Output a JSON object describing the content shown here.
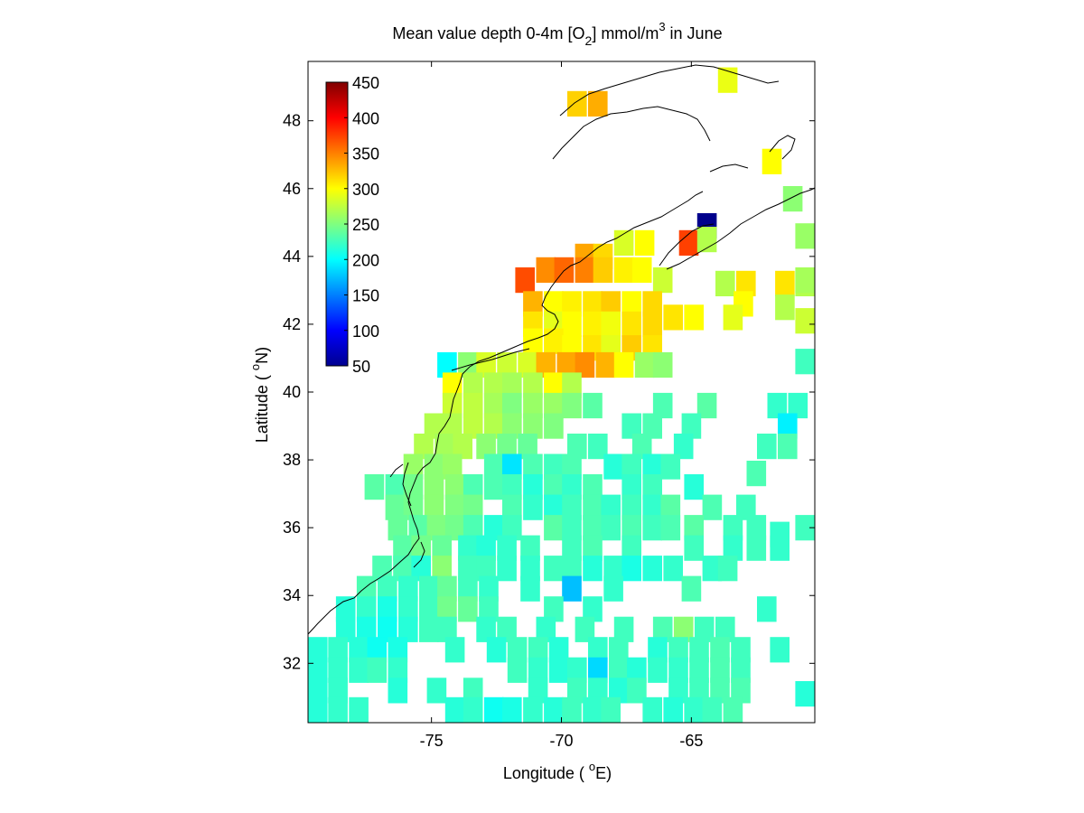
{
  "figure": {
    "title_main": "Mean value depth 0-4m [O",
    "title_sub": "2",
    "title_mid": "] mmol/m",
    "title_sup": "3",
    "title_end": " in June",
    "xlabel_pre": "Longitude ( ",
    "xlabel_deg": "o",
    "xlabel_post": "E)",
    "ylabel_pre": "Latitude ( ",
    "ylabel_deg": "o",
    "ylabel_post": "N)"
  },
  "chart_data": {
    "type": "heatmap",
    "xlim": [
      -79.75,
      -60.25
    ],
    "ylim": [
      30.25,
      49.75
    ],
    "cell_size_deg": 0.75,
    "x_ticks": [
      -75,
      -70,
      -65
    ],
    "x_tick_labels": [
      "-75",
      "-70",
      "-65"
    ],
    "y_ticks": [
      32,
      34,
      36,
      38,
      40,
      42,
      44,
      46,
      48
    ],
    "y_tick_labels": [
      "32",
      "34",
      "36",
      "38",
      "40",
      "42",
      "44",
      "46",
      "48"
    ],
    "colorbar": {
      "min": 50,
      "max": 450,
      "colormap": "jet",
      "ticks": [
        50,
        100,
        150,
        200,
        250,
        300,
        350,
        400,
        450
      ],
      "tick_labels": [
        "50",
        "100",
        "150",
        "200",
        "250",
        "300",
        "350",
        "400",
        "450"
      ],
      "placement": "top-left inside axes"
    },
    "cells": [
      [
        -69.4,
        48.5,
        318
      ],
      [
        -68.6,
        48.5,
        332
      ],
      [
        -63.6,
        49.2,
        292
      ],
      [
        -61.9,
        46.8,
        300
      ],
      [
        -61.1,
        45.7,
        255
      ],
      [
        -64.4,
        44.9,
        55
      ],
      [
        -65.1,
        44.4,
        375
      ],
      [
        -64.4,
        44.5,
        270
      ],
      [
        -67.6,
        44.4,
        285
      ],
      [
        -66.8,
        44.4,
        300
      ],
      [
        -69.1,
        44.0,
        335
      ],
      [
        -68.4,
        44.0,
        315
      ],
      [
        -71.4,
        43.3,
        370
      ],
      [
        -70.6,
        43.6,
        345
      ],
      [
        -69.9,
        43.6,
        360
      ],
      [
        -69.1,
        43.6,
        350
      ],
      [
        -68.4,
        43.6,
        320
      ],
      [
        -67.6,
        43.6,
        305
      ],
      [
        -66.9,
        43.6,
        300
      ],
      [
        -66.1,
        43.3,
        280
      ],
      [
        -63.7,
        43.2,
        270
      ],
      [
        -62.9,
        43.2,
        310
      ],
      [
        -61.4,
        43.2,
        310
      ],
      [
        -60.6,
        43.2,
        270
      ],
      [
        -63.0,
        42.6,
        300
      ],
      [
        -61.4,
        42.5,
        270
      ],
      [
        -71.1,
        42.6,
        330
      ],
      [
        -70.3,
        42.6,
        300
      ],
      [
        -69.6,
        42.6,
        305
      ],
      [
        -68.8,
        42.6,
        310
      ],
      [
        -68.1,
        42.6,
        320
      ],
      [
        -67.3,
        42.6,
        300
      ],
      [
        -66.5,
        42.6,
        315
      ],
      [
        -71.1,
        42.0,
        310
      ],
      [
        -70.3,
        42.0,
        290
      ],
      [
        -69.6,
        42.0,
        300
      ],
      [
        -68.8,
        42.0,
        305
      ],
      [
        -68.1,
        42.0,
        295
      ],
      [
        -67.3,
        42.0,
        310
      ],
      [
        -66.5,
        42.0,
        315
      ],
      [
        -65.7,
        42.2,
        310
      ],
      [
        -64.9,
        42.2,
        300
      ],
      [
        -63.4,
        42.2,
        290
      ],
      [
        -71.1,
        41.5,
        300
      ],
      [
        -70.3,
        41.5,
        305
      ],
      [
        -69.6,
        41.3,
        300
      ],
      [
        -68.8,
        41.3,
        310
      ],
      [
        -68.1,
        41.3,
        290
      ],
      [
        -67.3,
        41.3,
        320
      ],
      [
        -66.5,
        41.3,
        310
      ],
      [
        -74.4,
        40.8,
        200
      ],
      [
        -73.6,
        40.8,
        255
      ],
      [
        -72.9,
        40.8,
        285
      ],
      [
        -72.1,
        40.8,
        280
      ],
      [
        -71.3,
        40.8,
        285
      ],
      [
        -70.6,
        40.8,
        330
      ],
      [
        -69.8,
        40.8,
        335
      ],
      [
        -69.1,
        40.8,
        345
      ],
      [
        -68.3,
        40.8,
        330
      ],
      [
        -67.6,
        40.8,
        300
      ],
      [
        -66.8,
        40.8,
        260
      ],
      [
        -66.1,
        40.8,
        255
      ],
      [
        -74.2,
        40.2,
        300
      ],
      [
        -73.4,
        40.2,
        270
      ],
      [
        -72.6,
        40.2,
        270
      ],
      [
        -71.9,
        40.2,
        265
      ],
      [
        -71.1,
        40.2,
        270
      ],
      [
        -70.3,
        40.2,
        300
      ],
      [
        -69.6,
        40.2,
        270
      ],
      [
        -74.2,
        39.6,
        280
      ],
      [
        -73.4,
        39.6,
        275
      ],
      [
        -72.6,
        39.6,
        265
      ],
      [
        -71.9,
        39.6,
        250
      ],
      [
        -71.1,
        39.6,
        260
      ],
      [
        -70.3,
        39.6,
        260
      ],
      [
        -69.6,
        39.6,
        250
      ],
      [
        -68.8,
        39.6,
        235
      ],
      [
        -66.1,
        39.6,
        230
      ],
      [
        -64.4,
        39.6,
        235
      ],
      [
        -61.7,
        39.6,
        220
      ],
      [
        -60.9,
        39.6,
        220
      ],
      [
        -74.9,
        39.0,
        270
      ],
      [
        -74.2,
        39.0,
        270
      ],
      [
        -73.4,
        39.0,
        275
      ],
      [
        -72.6,
        39.0,
        270
      ],
      [
        -71.9,
        39.0,
        255
      ],
      [
        -71.1,
        39.0,
        255
      ],
      [
        -70.3,
        39.0,
        250
      ],
      [
        -67.3,
        39.0,
        225
      ],
      [
        -66.5,
        39.0,
        230
      ],
      [
        -65.0,
        39.0,
        225
      ],
      [
        -61.3,
        39.0,
        195
      ],
      [
        -75.3,
        38.4,
        270
      ],
      [
        -74.5,
        38.4,
        265
      ],
      [
        -73.8,
        38.4,
        270
      ],
      [
        -72.9,
        38.4,
        255
      ],
      [
        -72.1,
        38.4,
        245
      ],
      [
        -71.3,
        38.4,
        240
      ],
      [
        -69.4,
        38.4,
        230
      ],
      [
        -68.6,
        38.4,
        225
      ],
      [
        -66.9,
        38.4,
        230
      ],
      [
        -65.3,
        38.4,
        220
      ],
      [
        -62.1,
        38.4,
        225
      ],
      [
        -61.3,
        38.4,
        230
      ],
      [
        -75.7,
        37.8,
        260
      ],
      [
        -74.9,
        37.8,
        255
      ],
      [
        -74.2,
        37.8,
        260
      ],
      [
        -72.6,
        37.8,
        230
      ],
      [
        -71.9,
        37.8,
        190
      ],
      [
        -71.1,
        37.8,
        230
      ],
      [
        -70.3,
        37.8,
        225
      ],
      [
        -69.6,
        37.8,
        230
      ],
      [
        -68.0,
        37.8,
        215
      ],
      [
        -67.3,
        37.8,
        225
      ],
      [
        -66.5,
        37.8,
        215
      ],
      [
        -65.8,
        37.8,
        225
      ],
      [
        -62.5,
        37.6,
        230
      ],
      [
        -77.2,
        37.2,
        235
      ],
      [
        -76.4,
        37.2,
        230
      ],
      [
        -75.7,
        37.2,
        245
      ],
      [
        -74.9,
        37.2,
        255
      ],
      [
        -74.1,
        37.2,
        255
      ],
      [
        -73.4,
        37.2,
        230
      ],
      [
        -72.6,
        37.2,
        230
      ],
      [
        -71.9,
        37.2,
        225
      ],
      [
        -71.1,
        37.2,
        215
      ],
      [
        -70.3,
        37.2,
        230
      ],
      [
        -69.6,
        37.2,
        220
      ],
      [
        -68.8,
        37.2,
        230
      ],
      [
        -67.3,
        37.2,
        220
      ],
      [
        -66.5,
        37.2,
        225
      ],
      [
        -64.9,
        37.2,
        215
      ],
      [
        -76.4,
        36.6,
        240
      ],
      [
        -75.7,
        36.6,
        245
      ],
      [
        -74.9,
        36.6,
        255
      ],
      [
        -74.1,
        36.6,
        250
      ],
      [
        -73.4,
        36.6,
        245
      ],
      [
        -71.9,
        36.6,
        230
      ],
      [
        -71.1,
        36.6,
        220
      ],
      [
        -70.3,
        36.6,
        215
      ],
      [
        -69.6,
        36.6,
        225
      ],
      [
        -68.8,
        36.6,
        230
      ],
      [
        -68.1,
        36.6,
        220
      ],
      [
        -67.3,
        36.6,
        225
      ],
      [
        -66.5,
        36.6,
        220
      ],
      [
        -65.8,
        36.6,
        235
      ],
      [
        -64.2,
        36.6,
        230
      ],
      [
        -62.9,
        36.6,
        225
      ],
      [
        -76.3,
        36.0,
        240
      ],
      [
        -75.5,
        36.0,
        235
      ],
      [
        -74.8,
        36.0,
        250
      ],
      [
        -74.1,
        36.0,
        245
      ],
      [
        -73.4,
        36.0,
        230
      ],
      [
        -72.6,
        36.0,
        215
      ],
      [
        -71.9,
        36.0,
        225
      ],
      [
        -70.3,
        36.0,
        235
      ],
      [
        -69.6,
        36.0,
        225
      ],
      [
        -68.8,
        36.0,
        230
      ],
      [
        -68.1,
        36.0,
        225
      ],
      [
        -67.3,
        36.0,
        230
      ],
      [
        -66.5,
        36.0,
        225
      ],
      [
        -65.8,
        36.0,
        230
      ],
      [
        -64.9,
        36.0,
        235
      ],
      [
        -63.4,
        36.0,
        225
      ],
      [
        -62.5,
        36.0,
        225
      ],
      [
        -61.6,
        35.8,
        220
      ],
      [
        -76.1,
        35.4,
        235
      ],
      [
        -75.4,
        35.4,
        245
      ],
      [
        -74.6,
        35.4,
        240
      ],
      [
        -73.6,
        35.4,
        220
      ],
      [
        -72.9,
        35.4,
        215
      ],
      [
        -72.1,
        35.4,
        220
      ],
      [
        -71.2,
        35.4,
        225
      ],
      [
        -69.6,
        35.4,
        225
      ],
      [
        -68.8,
        35.4,
        230
      ],
      [
        -67.3,
        35.4,
        225
      ],
      [
        -64.9,
        35.4,
        225
      ],
      [
        -63.4,
        35.4,
        220
      ],
      [
        -62.5,
        35.4,
        225
      ],
      [
        -61.6,
        35.4,
        220
      ],
      [
        -76.9,
        34.8,
        230
      ],
      [
        -76.1,
        34.8,
        230
      ],
      [
        -75.4,
        34.8,
        215
      ],
      [
        -74.6,
        34.8,
        255
      ],
      [
        -73.6,
        34.8,
        225
      ],
      [
        -72.9,
        34.8,
        225
      ],
      [
        -72.1,
        34.8,
        220
      ],
      [
        -71.2,
        34.8,
        220
      ],
      [
        -70.3,
        34.8,
        225
      ],
      [
        -69.6,
        34.8,
        225
      ],
      [
        -68.8,
        34.8,
        215
      ],
      [
        -68.0,
        34.8,
        220
      ],
      [
        -67.3,
        34.8,
        210
      ],
      [
        -66.5,
        34.8,
        215
      ],
      [
        -65.7,
        34.8,
        220
      ],
      [
        -64.2,
        34.8,
        220
      ],
      [
        -63.6,
        34.8,
        225
      ],
      [
        -77.5,
        34.2,
        230
      ],
      [
        -76.7,
        34.2,
        225
      ],
      [
        -75.9,
        34.2,
        220
      ],
      [
        -75.1,
        34.2,
        225
      ],
      [
        -74.4,
        34.2,
        240
      ],
      [
        -73.6,
        34.2,
        225
      ],
      [
        -72.8,
        34.2,
        220
      ],
      [
        -71.2,
        34.2,
        220
      ],
      [
        -69.6,
        34.2,
        175
      ],
      [
        -68.0,
        34.2,
        220
      ],
      [
        -65.0,
        34.2,
        230
      ],
      [
        -78.3,
        33.6,
        215
      ],
      [
        -77.5,
        33.6,
        220
      ],
      [
        -76.7,
        33.6,
        210
      ],
      [
        -75.9,
        33.6,
        220
      ],
      [
        -75.1,
        33.6,
        225
      ],
      [
        -74.4,
        33.6,
        245
      ],
      [
        -73.6,
        33.6,
        240
      ],
      [
        -72.8,
        33.6,
        225
      ],
      [
        -70.3,
        33.6,
        225
      ],
      [
        -68.8,
        33.6,
        220
      ],
      [
        -62.1,
        33.6,
        220
      ],
      [
        -78.3,
        33.0,
        215
      ],
      [
        -77.5,
        33.0,
        210
      ],
      [
        -76.7,
        33.0,
        205
      ],
      [
        -75.9,
        33.0,
        215
      ],
      [
        -75.1,
        33.0,
        225
      ],
      [
        -74.4,
        33.0,
        225
      ],
      [
        -72.9,
        33.0,
        220
      ],
      [
        -72.1,
        33.0,
        225
      ],
      [
        -70.6,
        33.0,
        220
      ],
      [
        -69.1,
        33.0,
        225
      ],
      [
        -67.6,
        33.0,
        225
      ],
      [
        -66.1,
        33.0,
        230
      ],
      [
        -65.3,
        33.0,
        255
      ],
      [
        -64.5,
        33.0,
        225
      ],
      [
        -63.7,
        33.0,
        225
      ],
      [
        -79.4,
        32.4,
        215
      ],
      [
        -78.6,
        32.4,
        220
      ],
      [
        -77.8,
        32.4,
        215
      ],
      [
        -77.1,
        32.4,
        205
      ],
      [
        -76.3,
        32.4,
        210
      ],
      [
        -74.1,
        32.4,
        220
      ],
      [
        -72.5,
        32.4,
        215
      ],
      [
        -71.7,
        32.4,
        225
      ],
      [
        -70.9,
        32.4,
        225
      ],
      [
        -70.1,
        32.4,
        215
      ],
      [
        -68.6,
        32.4,
        220
      ],
      [
        -67.8,
        32.4,
        225
      ],
      [
        -66.3,
        32.4,
        215
      ],
      [
        -65.5,
        32.4,
        225
      ],
      [
        -64.7,
        32.4,
        225
      ],
      [
        -63.9,
        32.4,
        230
      ],
      [
        -63.1,
        32.4,
        225
      ],
      [
        -61.6,
        32.4,
        220
      ],
      [
        -79.4,
        31.8,
        215
      ],
      [
        -78.6,
        31.8,
        220
      ],
      [
        -77.8,
        31.8,
        220
      ],
      [
        -77.1,
        31.8,
        225
      ],
      [
        -76.3,
        31.8,
        220
      ],
      [
        -71.7,
        31.8,
        225
      ],
      [
        -70.9,
        31.8,
        220
      ],
      [
        -70.1,
        31.8,
        215
      ],
      [
        -69.4,
        31.8,
        220
      ],
      [
        -68.6,
        31.8,
        185
      ],
      [
        -67.8,
        31.8,
        225
      ],
      [
        -67.1,
        31.8,
        215
      ],
      [
        -66.3,
        31.8,
        220
      ],
      [
        -65.5,
        31.8,
        220
      ],
      [
        -64.7,
        31.8,
        225
      ],
      [
        -63.9,
        31.8,
        230
      ],
      [
        -63.1,
        31.8,
        225
      ],
      [
        -79.4,
        31.2,
        215
      ],
      [
        -78.6,
        31.2,
        220
      ],
      [
        -76.3,
        31.2,
        215
      ],
      [
        -74.8,
        31.2,
        220
      ],
      [
        -73.4,
        31.2,
        225
      ],
      [
        -70.9,
        31.2,
        220
      ],
      [
        -69.4,
        31.2,
        225
      ],
      [
        -68.6,
        31.2,
        220
      ],
      [
        -67.8,
        31.2,
        215
      ],
      [
        -67.1,
        31.2,
        225
      ],
      [
        -65.5,
        31.2,
        220
      ],
      [
        -64.7,
        31.2,
        225
      ],
      [
        -63.9,
        31.2,
        230
      ],
      [
        -63.1,
        31.2,
        230
      ],
      [
        -79.4,
        30.6,
        215
      ],
      [
        -78.6,
        30.6,
        220
      ],
      [
        -77.8,
        30.6,
        220
      ],
      [
        -74.1,
        30.6,
        215
      ],
      [
        -73.4,
        30.6,
        220
      ],
      [
        -72.6,
        30.6,
        205
      ],
      [
        -71.9,
        30.6,
        210
      ],
      [
        -71.1,
        30.6,
        220
      ],
      [
        -70.3,
        30.6,
        215
      ],
      [
        -69.6,
        30.6,
        225
      ],
      [
        -68.8,
        30.6,
        220
      ],
      [
        -68.1,
        30.6,
        225
      ],
      [
        -66.5,
        30.6,
        220
      ],
      [
        -65.7,
        30.6,
        215
      ],
      [
        -64.9,
        30.6,
        220
      ],
      [
        -64.2,
        30.6,
        225
      ],
      [
        -63.4,
        30.6,
        230
      ],
      [
        -60.4,
        31.1,
        215
      ],
      [
        -60.4,
        36.0,
        225
      ],
      [
        -60.4,
        40.9,
        225
      ],
      [
        -60.4,
        42.1,
        280
      ],
      [
        -60.4,
        43.3,
        265
      ],
      [
        -60.4,
        44.6,
        260
      ]
    ]
  }
}
